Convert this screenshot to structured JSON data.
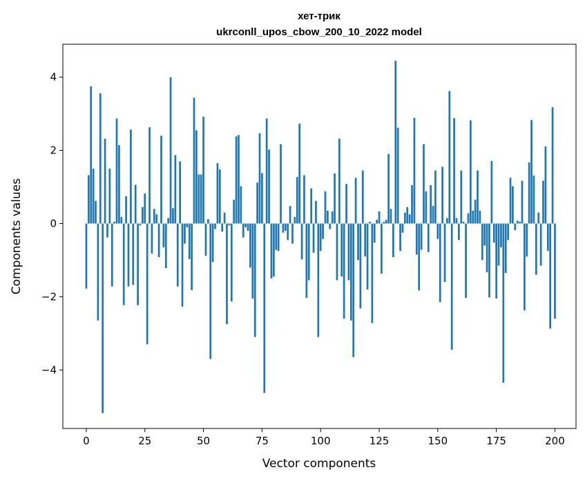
{
  "chart_data": {
    "type": "bar",
    "title": "хет-трик",
    "subtitle": "ukrconll_upos_cbow_200_10_2022 model",
    "xlabel": "Vector components",
    "ylabel": "Components values",
    "xlim": [
      -10,
      209
    ],
    "ylim": [
      -5.6,
      4.9
    ],
    "xticks": [
      0,
      25,
      50,
      75,
      100,
      125,
      150,
      175,
      200
    ],
    "yticks": [
      -4,
      -2,
      0,
      2,
      4
    ],
    "ytick_labels": [
      "−4",
      "−2",
      "0",
      "2",
      "4"
    ],
    "bar_color": "#1f77b4",
    "grid": false,
    "values": [
      -1.78,
      1.32,
      3.75,
      1.5,
      0.62,
      -2.65,
      3.56,
      -5.18,
      2.32,
      -0.38,
      1.5,
      -1.72,
      0.05,
      2.87,
      2.14,
      0.18,
      -2.23,
      0.75,
      -1.72,
      2.57,
      -1.68,
      1.06,
      -2.23,
      -0.05,
      0.45,
      0.82,
      -3.3,
      2.63,
      -0.82,
      0.4,
      0.25,
      -0.92,
      2.4,
      -0.65,
      -1.22,
      0.15,
      4.0,
      0.42,
      1.87,
      -1.72,
      1.7,
      -2.27,
      -0.55,
      -0.1,
      -0.97,
      -1.82,
      3.44,
      2.55,
      1.34,
      1.34,
      2.92,
      -0.88,
      0.12,
      -3.7,
      -1.05,
      -0.15,
      1.65,
      1.48,
      -0.22,
      0.3,
      -2.75,
      -0.05,
      -2.13,
      0.65,
      2.38,
      2.42,
      1.02,
      -0.38,
      -0.1,
      -0.2,
      -1.2,
      -2.05,
      -3.1,
      1.12,
      2.47,
      1.38,
      -4.63,
      2.87,
      2.02,
      -1.5,
      -1.45,
      -0.72,
      -0.75,
      2.17,
      -0.25,
      -0.2,
      -0.45,
      0.48,
      -0.55,
      0.18,
      1.27,
      2.73,
      -0.98,
      1.32,
      -2.03,
      -1.55,
      0.96,
      -0.8,
      0.62,
      -3.1,
      -0.75,
      -0.42,
      0.88,
      0.35,
      -0.15,
      0.33,
      1.37,
      -1.55,
      2.32,
      -1.45,
      -2.6,
      1.08,
      -1.55,
      -2.65,
      -3.65,
      1.25,
      -1.0,
      -2.32,
      1.45,
      -0.9,
      -1.8,
      0.05,
      -2.72,
      -0.52,
      0.1,
      0.33,
      -1.37,
      0.05,
      0.1,
      1.9,
      0.4,
      -0.92,
      4.45,
      2.62,
      -0.75,
      -0.25,
      0.3,
      0.45,
      0.25,
      1.05,
      2.89,
      -0.85,
      -1.83,
      -0.72,
      2.17,
      0.88,
      -0.78,
      1.05,
      0.48,
      1.45,
      -0.42,
      -2.15,
      1.55,
      -1.6,
      0.15,
      3.62,
      -3.45,
      2.88,
      0.15,
      -0.45,
      1.45,
      0.05,
      -2.03,
      0.28,
      2.82,
      0.35,
      0.65,
      1.45,
      0.35,
      -1.0,
      -0.6,
      -1.33,
      -2.02,
      1.71,
      -0.52,
      -2.05,
      -1.15,
      -0.65,
      -4.35,
      -1.35,
      -0.45,
      1.25,
      1.02,
      -0.18,
      0.08,
      0.05,
      1.17,
      -2.37,
      -0.9,
      1.67,
      2.83,
      1.31,
      -1.4,
      0.3,
      -1.15,
      1.17,
      2.11,
      -0.75,
      -2.87,
      3.18,
      -2.6
    ]
  }
}
